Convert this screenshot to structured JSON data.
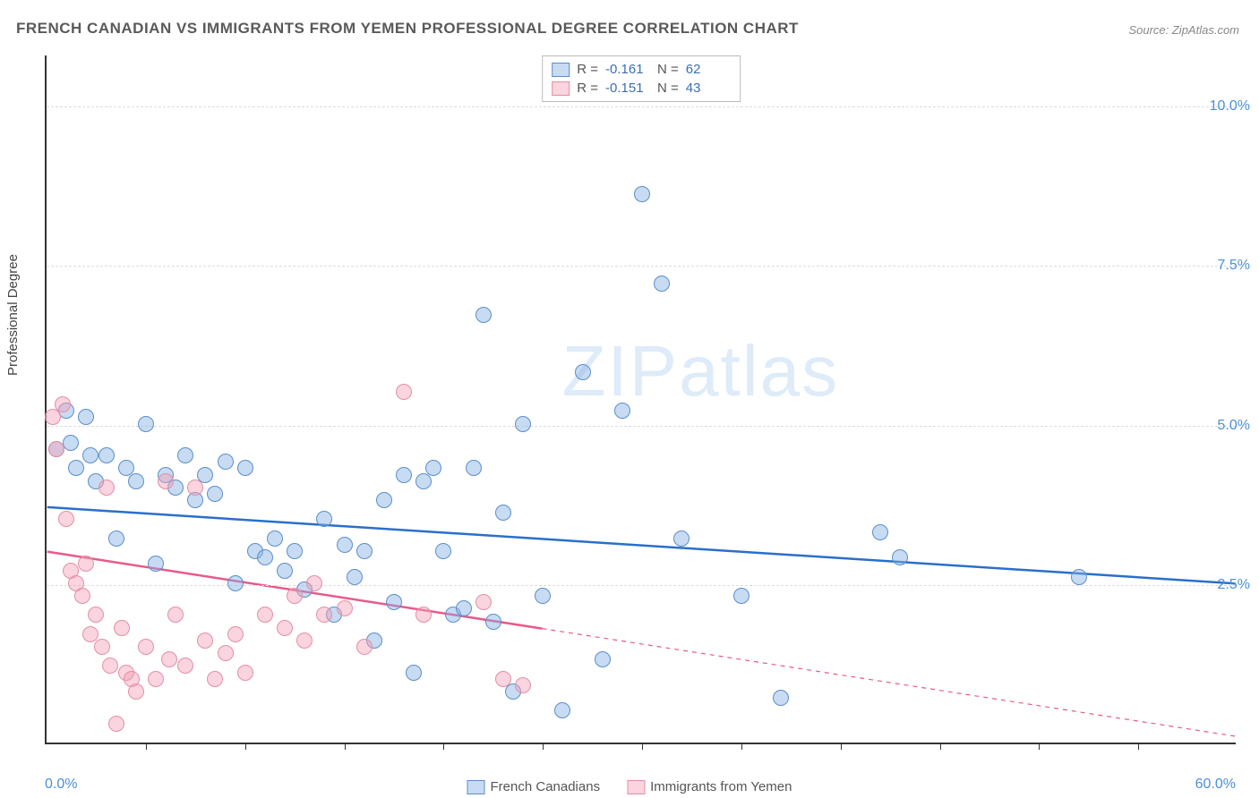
{
  "title": "FRENCH CANADIAN VS IMMIGRANTS FROM YEMEN PROFESSIONAL DEGREE CORRELATION CHART",
  "source": "Source: ZipAtlas.com",
  "ylabel": "Professional Degree",
  "watermark_bold": "ZIP",
  "watermark_thin": "atlas",
  "chart": {
    "type": "scatter",
    "xlim": [
      0,
      60
    ],
    "ylim": [
      0,
      10.8
    ],
    "x_axis_min_label": "0.0%",
    "x_axis_max_label": "60.0%",
    "y_ticks": [
      2.5,
      5.0,
      7.5,
      10.0
    ],
    "y_tick_labels": [
      "2.5%",
      "5.0%",
      "7.5%",
      "10.0%"
    ],
    "x_tick_positions": [
      5,
      10,
      15,
      20,
      25,
      30,
      35,
      40,
      45,
      50,
      55
    ],
    "background_color": "#ffffff",
    "grid_color": "#dddddd",
    "axis_color": "#333333",
    "marker_radius": 9,
    "marker_border_width": 1.5,
    "trend_line_width": 2.5,
    "series": [
      {
        "name": "French Canadians",
        "fill_color": "rgba(131,175,229,0.45)",
        "border_color": "#5b8fc7",
        "line_color": "#2a6fc9",
        "R": "-0.161",
        "N": "62",
        "trend": {
          "x1": 0,
          "y1": 3.7,
          "x2": 60,
          "y2": 2.5,
          "solid_until": 60
        },
        "points": [
          [
            0.5,
            4.6
          ],
          [
            1,
            5.2
          ],
          [
            1.2,
            4.7
          ],
          [
            1.5,
            4.3
          ],
          [
            2,
            5.1
          ],
          [
            2.2,
            4.5
          ],
          [
            2.5,
            4.1
          ],
          [
            3,
            4.5
          ],
          [
            3.5,
            3.2
          ],
          [
            4,
            4.3
          ],
          [
            4.5,
            4.1
          ],
          [
            5,
            5.0
          ],
          [
            5.5,
            2.8
          ],
          [
            6,
            4.2
          ],
          [
            6.5,
            4.0
          ],
          [
            7,
            4.5
          ],
          [
            7.5,
            3.8
          ],
          [
            8,
            4.2
          ],
          [
            8.5,
            3.9
          ],
          [
            9,
            4.4
          ],
          [
            9.5,
            2.5
          ],
          [
            10,
            4.3
          ],
          [
            10.5,
            3.0
          ],
          [
            11,
            2.9
          ],
          [
            11.5,
            3.2
          ],
          [
            12,
            2.7
          ],
          [
            12.5,
            3.0
          ],
          [
            13,
            2.4
          ],
          [
            14,
            3.5
          ],
          [
            14.5,
            2.0
          ],
          [
            15,
            3.1
          ],
          [
            15.5,
            2.6
          ],
          [
            16,
            3.0
          ],
          [
            16.5,
            1.6
          ],
          [
            17,
            3.8
          ],
          [
            17.5,
            2.2
          ],
          [
            18,
            4.2
          ],
          [
            18.5,
            1.1
          ],
          [
            19,
            4.1
          ],
          [
            19.5,
            4.3
          ],
          [
            20,
            3.0
          ],
          [
            20.5,
            2.0
          ],
          [
            21,
            2.1
          ],
          [
            21.5,
            4.3
          ],
          [
            22,
            6.7
          ],
          [
            22.5,
            1.9
          ],
          [
            23,
            3.6
          ],
          [
            23.5,
            0.8
          ],
          [
            24,
            5.0
          ],
          [
            25,
            2.3
          ],
          [
            26,
            0.5
          ],
          [
            27,
            5.8
          ],
          [
            28,
            1.3
          ],
          [
            29,
            5.2
          ],
          [
            30,
            8.6
          ],
          [
            31,
            7.2
          ],
          [
            32,
            3.2
          ],
          [
            35,
            2.3
          ],
          [
            37,
            0.7
          ],
          [
            42,
            3.3
          ],
          [
            43,
            2.9
          ],
          [
            52,
            2.6
          ]
        ]
      },
      {
        "name": "Immigrants from Yemen",
        "fill_color": "rgba(244,160,182,0.45)",
        "border_color": "#e38fa6",
        "line_color": "#e75a8a",
        "R": "-0.151",
        "N": "43",
        "trend": {
          "x1": 0,
          "y1": 3.0,
          "x2": 60,
          "y2": 0.1,
          "solid_until": 25
        },
        "points": [
          [
            0.3,
            5.1
          ],
          [
            0.5,
            4.6
          ],
          [
            0.8,
            5.3
          ],
          [
            1,
            3.5
          ],
          [
            1.2,
            2.7
          ],
          [
            1.5,
            2.5
          ],
          [
            1.8,
            2.3
          ],
          [
            2,
            2.8
          ],
          [
            2.2,
            1.7
          ],
          [
            2.5,
            2.0
          ],
          [
            2.8,
            1.5
          ],
          [
            3,
            4.0
          ],
          [
            3.2,
            1.2
          ],
          [
            3.5,
            0.3
          ],
          [
            3.8,
            1.8
          ],
          [
            4,
            1.1
          ],
          [
            4.3,
            1.0
          ],
          [
            4.5,
            0.8
          ],
          [
            5,
            1.5
          ],
          [
            5.5,
            1.0
          ],
          [
            6,
            4.1
          ],
          [
            6.2,
            1.3
          ],
          [
            6.5,
            2.0
          ],
          [
            7,
            1.2
          ],
          [
            7.5,
            4.0
          ],
          [
            8,
            1.6
          ],
          [
            8.5,
            1.0
          ],
          [
            9,
            1.4
          ],
          [
            9.5,
            1.7
          ],
          [
            10,
            1.1
          ],
          [
            11,
            2.0
          ],
          [
            12,
            1.8
          ],
          [
            12.5,
            2.3
          ],
          [
            13,
            1.6
          ],
          [
            13.5,
            2.5
          ],
          [
            14,
            2.0
          ],
          [
            15,
            2.1
          ],
          [
            16,
            1.5
          ],
          [
            18,
            5.5
          ],
          [
            19,
            2.0
          ],
          [
            22,
            2.2
          ],
          [
            23,
            1.0
          ],
          [
            24,
            0.9
          ]
        ]
      }
    ]
  },
  "legend": {
    "series1_label": "French Canadians",
    "series2_label": "Immigrants from Yemen"
  }
}
